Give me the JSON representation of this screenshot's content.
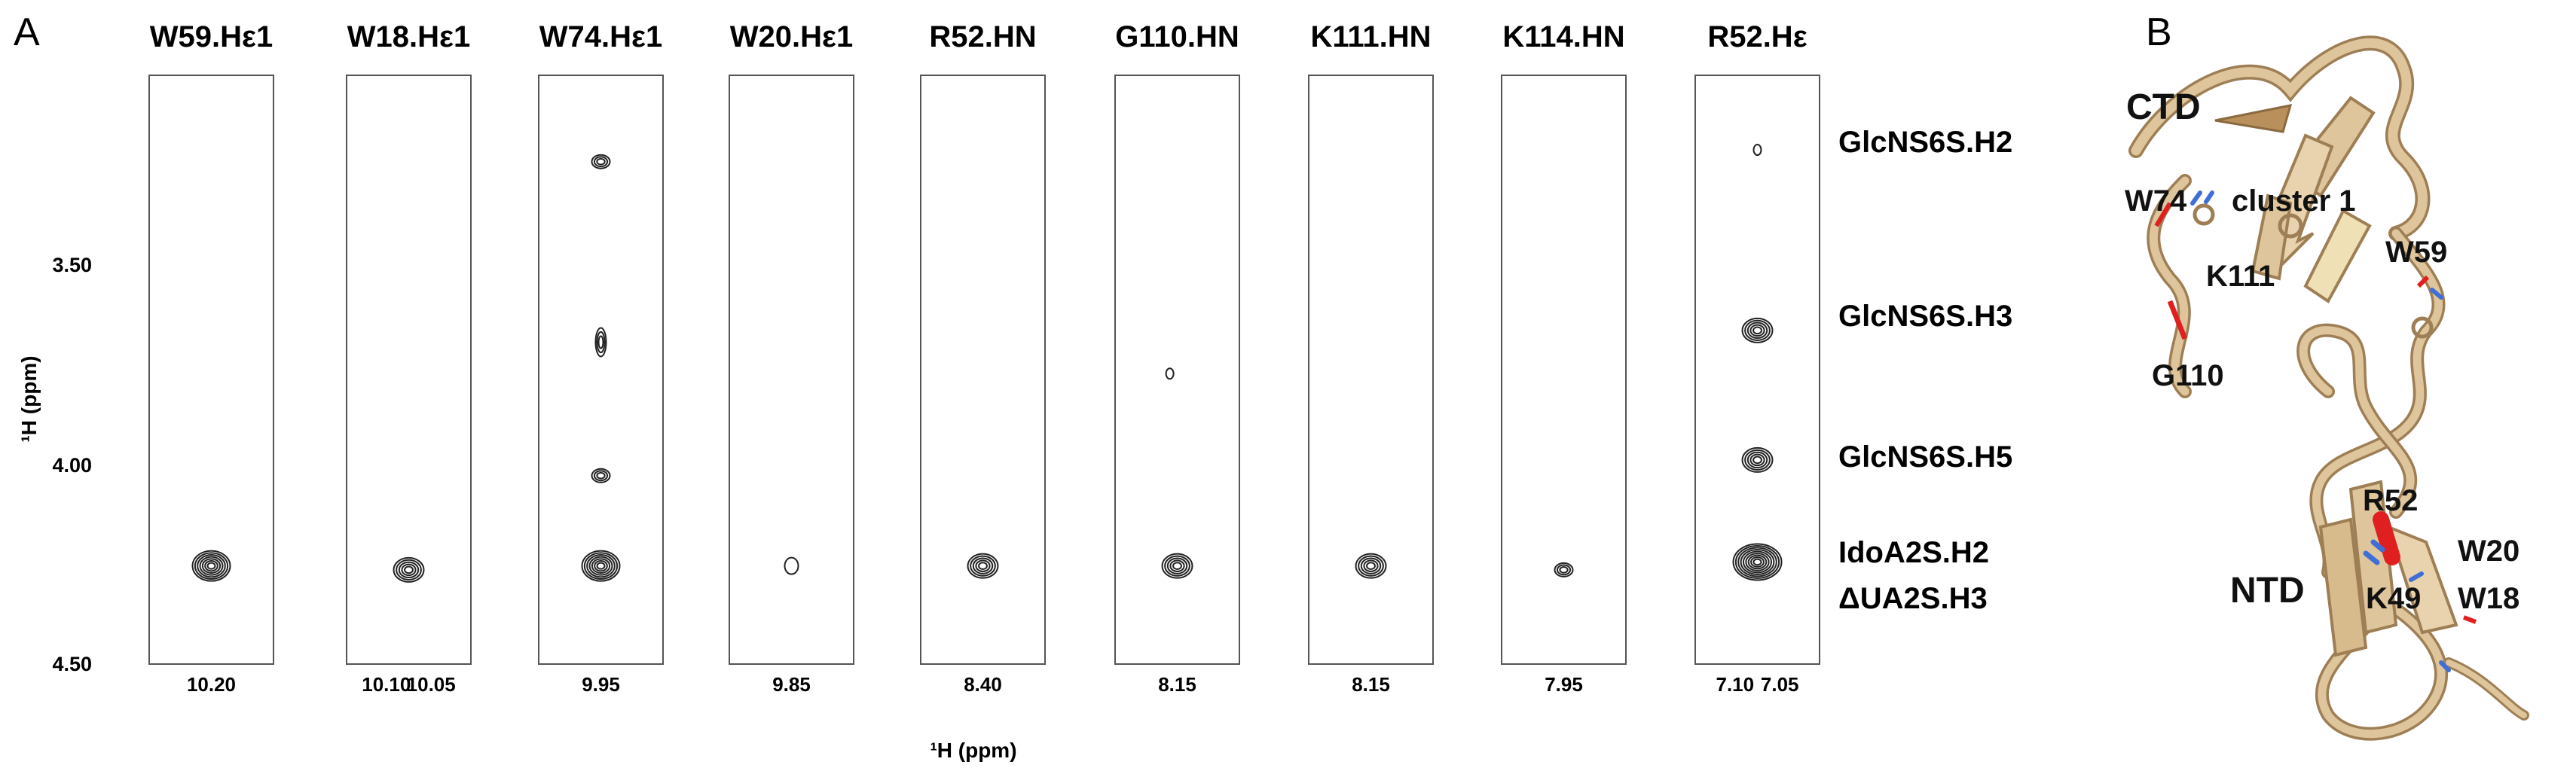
{
  "panels": {
    "a": "A",
    "b": "B"
  },
  "chart_data": {
    "type": "nmr-strip-plot",
    "y_axis": {
      "label": "¹H (ppm)",
      "range": [
        3.0,
        4.5
      ],
      "inverted": true,
      "ticks": [
        "3.50",
        "4.00",
        "4.50"
      ]
    },
    "x_axis_label": "¹H (ppm)",
    "strips": [
      {
        "title": "W59.Hε1",
        "x_ticks": [
          "10.20"
        ],
        "peaks": [
          {
            "y": 4.25,
            "size": "large"
          }
        ]
      },
      {
        "title": "W18.Hε1",
        "x_ticks": [
          "10.10",
          "10.05"
        ],
        "peaks": [
          {
            "y": 4.26,
            "size": "medium"
          }
        ]
      },
      {
        "title": "W74.Hε1",
        "x_ticks": [
          "9.95"
        ],
        "peaks": [
          {
            "y": 3.22,
            "size": "small"
          },
          {
            "y": 3.68,
            "size": "elongated"
          },
          {
            "y": 4.02,
            "size": "small"
          },
          {
            "y": 4.25,
            "size": "large"
          }
        ]
      },
      {
        "title": "W20.Hε1",
        "x_ticks": [
          "9.85"
        ],
        "peaks": [
          {
            "y": 4.25,
            "size": "tiny"
          }
        ]
      },
      {
        "title": "R52.HN",
        "x_ticks": [
          "8.40"
        ],
        "peaks": [
          {
            "y": 4.25,
            "size": "medium"
          }
        ]
      },
      {
        "title": "G110.HN",
        "x_ticks": [
          "8.15"
        ],
        "peaks": [
          {
            "y": 3.76,
            "size": "dot"
          },
          {
            "y": 4.25,
            "size": "medium"
          }
        ]
      },
      {
        "title": "K111.HN",
        "x_ticks": [
          "8.15"
        ],
        "peaks": [
          {
            "y": 4.25,
            "size": "medium"
          }
        ]
      },
      {
        "title": "K114.HN",
        "x_ticks": [
          "7.95"
        ],
        "peaks": [
          {
            "y": 4.26,
            "size": "small"
          }
        ]
      },
      {
        "title": "R52.Hε",
        "x_ticks": [
          "7.10",
          "7.05"
        ],
        "peaks": [
          {
            "y": 3.19,
            "size": "dot"
          },
          {
            "y": 3.65,
            "size": "medium"
          },
          {
            "y": 3.98,
            "size": "medium"
          },
          {
            "y": 4.24,
            "size": "xlarge"
          }
        ]
      }
    ],
    "peak_labels": [
      "GlcNS6S.H2",
      "GlcNS6S.H3",
      "GlcNS6S.H5",
      "IdoA2S.H2",
      "ΔUA2S.H3"
    ]
  },
  "structure_labels": {
    "ctd": "CTD",
    "ntd": "NTD",
    "w74": "W74",
    "cluster": "cluster 1",
    "w59": "W59",
    "k111": "K111",
    "g110": "G110",
    "r52": "R52",
    "w20": "W20",
    "k49": "K49",
    "w18": "W18"
  },
  "colors": {
    "ribbon": "#dfc59c",
    "ribbon_edge": "#9e7f55",
    "residue_red": "#e02020",
    "residue_blue": "#3f6fd6",
    "contour": "#222222"
  }
}
